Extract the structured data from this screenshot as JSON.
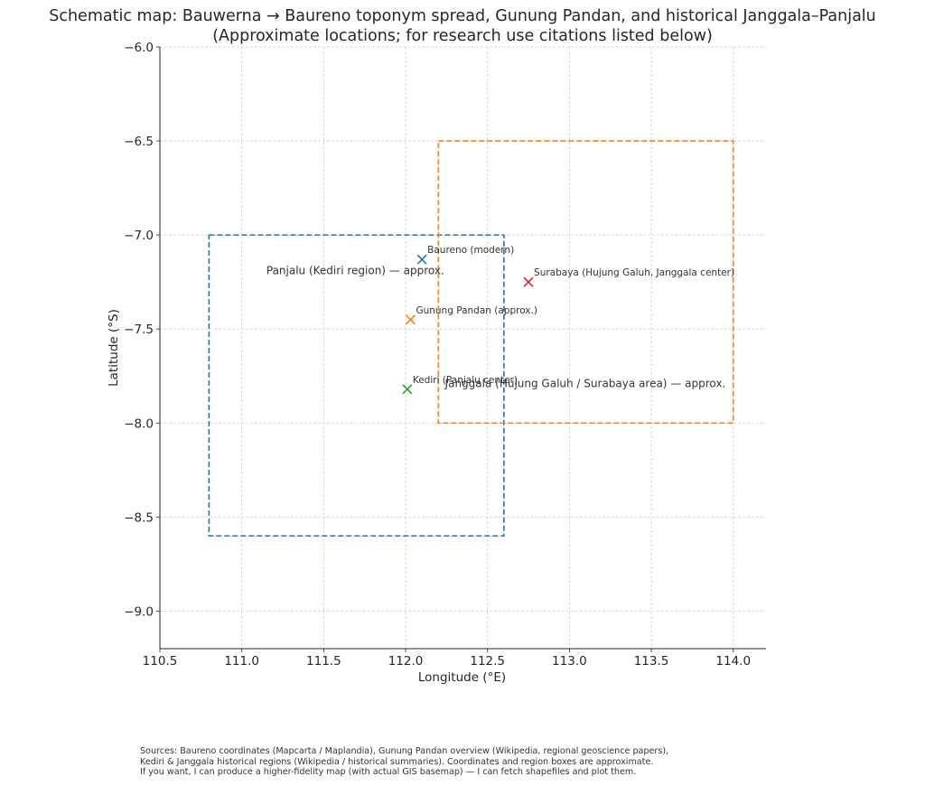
{
  "chart_data": {
    "type": "scatter",
    "title": "Schematic map: Bauwerna → Baureno toponym spread, Gunung Pandan, and historical Janggala–Panjalu",
    "subtitle": "(Approximate locations; for research use citations listed below)",
    "xlabel": "Longitude (°E)",
    "ylabel": "Latitude (°S)",
    "xlim": [
      110.5,
      114.2
    ],
    "ylim": [
      -9.2,
      -6.0
    ],
    "xticks": [
      110.5,
      111.0,
      111.5,
      112.0,
      112.5,
      113.0,
      113.5,
      114.0
    ],
    "xtick_labels": [
      "110.5",
      "111.0",
      "111.5",
      "112.0",
      "112.5",
      "113.0",
      "113.5",
      "114.0"
    ],
    "yticks": [
      -6.0,
      -6.5,
      -7.0,
      -7.5,
      -8.0,
      -8.5,
      -9.0
    ],
    "ytick_labels": [
      "−6.0",
      "−6.5",
      "−7.0",
      "−7.5",
      "−8.0",
      "−8.5",
      "−9.0"
    ],
    "grid": true,
    "points": [
      {
        "label": "Baureno (modern)",
        "lon": 112.1,
        "lat": -7.13,
        "color": "#1f77b4"
      },
      {
        "label": "Gunung Pandan (approx.)",
        "lon": 112.03,
        "lat": -7.45,
        "color": "#ff7f0e"
      },
      {
        "label": "Kediri (Panjalu center)",
        "lon": 112.01,
        "lat": -7.82,
        "color": "#2ca02c"
      },
      {
        "label": "Surabaya (Hujung Galuh, Janggala center)",
        "lon": 112.75,
        "lat": -7.25,
        "color": "#d62728"
      }
    ],
    "regions": [
      {
        "label": "Panjalu (Kediri region) — approx.",
        "lon_min": 110.8,
        "lon_max": 112.6,
        "lat_min": -8.6,
        "lat_max": -7.0,
        "color": "#1f77b4",
        "label_lon": 111.15,
        "label_lat": -7.19
      },
      {
        "label": "Janggala (Hujung Galuh / Surabaya area) — approx.",
        "lon_min": 112.2,
        "lon_max": 114.0,
        "lat_min": -8.0,
        "lat_max": -6.5,
        "color": "#ff7f0e",
        "label_lon": 112.24,
        "label_lat": -7.79
      }
    ]
  },
  "sources": {
    "line1": "Sources: Baureno coordinates (Mapcarta / Maplandia), Gunung Pandan overview (Wikipedia, regional geoscience papers),",
    "line2": "Kediri & Janggala historical regions (Wikipedia / historical summaries). Coordinates and region boxes are approximate.",
    "line3": "If you want, I can produce a higher-fidelity map (with actual GIS basemap) — I can fetch shapefiles and plot them."
  }
}
